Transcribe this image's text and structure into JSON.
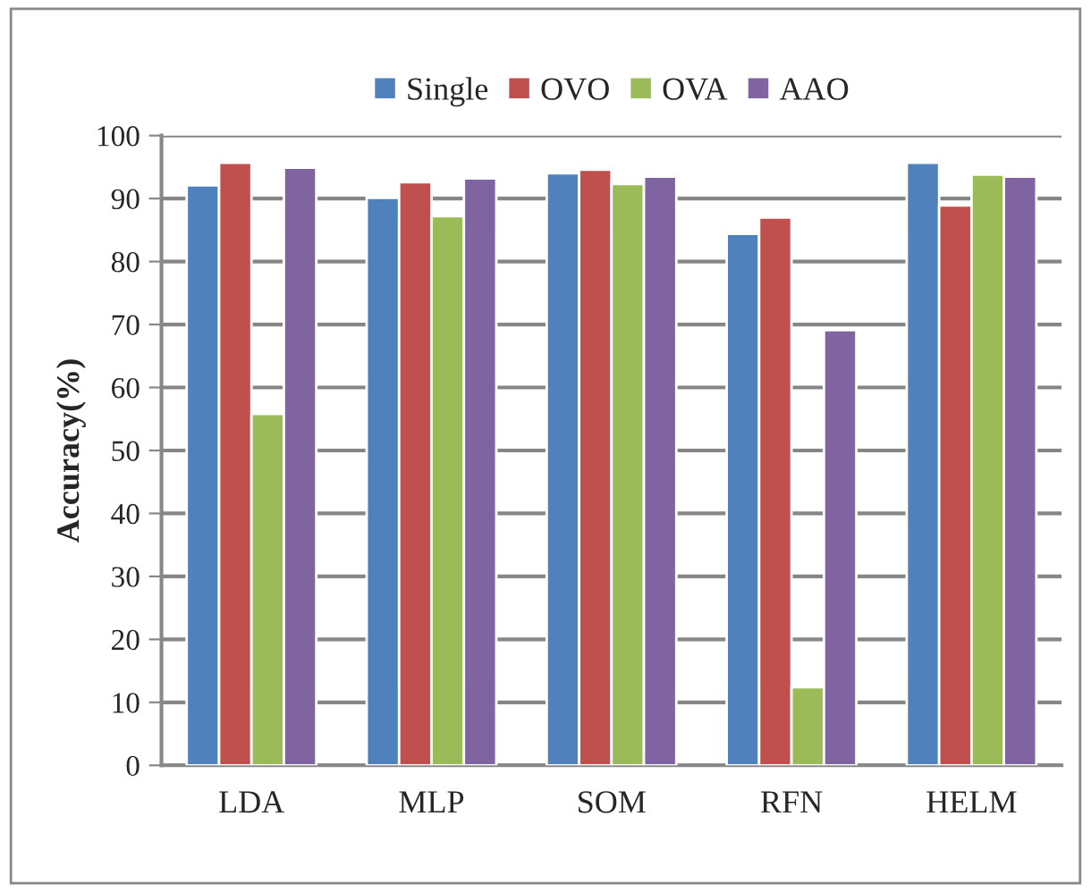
{
  "chart_data": {
    "type": "bar",
    "ylabel": "Accuracy(%)",
    "categories": [
      "LDA",
      "MLP",
      "SOM",
      "RFN",
      "HELM"
    ],
    "series": [
      {
        "name": "Single",
        "color": "#4f81bd",
        "values": [
          92.1,
          90.1,
          94.0,
          84.4,
          95.7
        ]
      },
      {
        "name": "OVO",
        "color": "#c0504d",
        "values": [
          95.7,
          92.6,
          94.6,
          87.0,
          88.9
        ]
      },
      {
        "name": "OVA",
        "color": "#9bbb59",
        "values": [
          55.8,
          87.2,
          92.3,
          12.4,
          93.8
        ]
      },
      {
        "name": "AAO",
        "color": "#8064a2",
        "values": [
          94.9,
          93.2,
          93.5,
          69.1,
          93.5
        ]
      }
    ],
    "ylim": [
      0,
      100
    ],
    "yticks": [
      0,
      10,
      20,
      30,
      40,
      50,
      60,
      70,
      80,
      90,
      100
    ],
    "grid": "y",
    "legend": "top"
  }
}
